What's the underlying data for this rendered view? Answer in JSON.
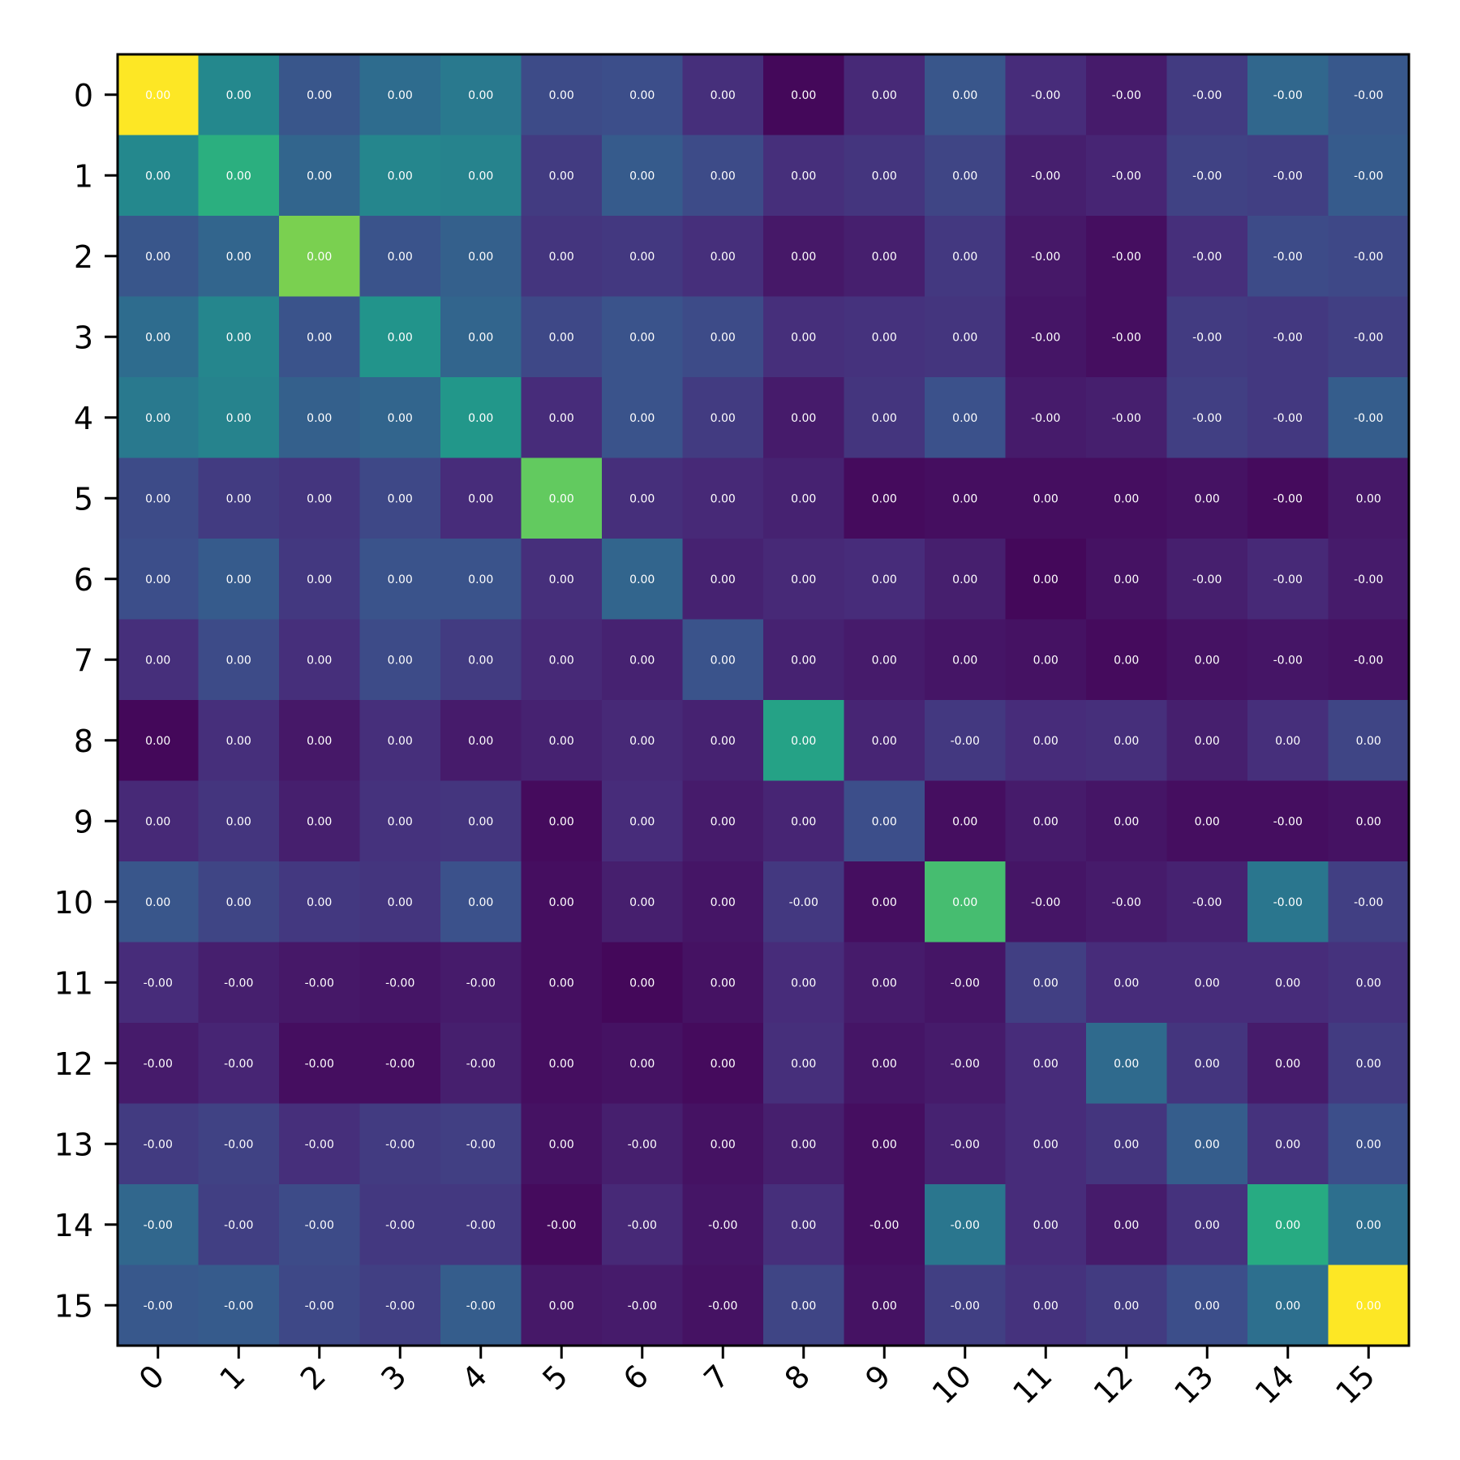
{
  "chart_data": {
    "type": "heatmap",
    "title": "",
    "xlabel": "",
    "ylabel": "",
    "colormap": "viridis",
    "x_categories": [
      "0",
      "1",
      "2",
      "3",
      "4",
      "5",
      "6",
      "7",
      "8",
      "9",
      "10",
      "11",
      "12",
      "13",
      "14",
      "15"
    ],
    "y_categories": [
      "0",
      "1",
      "2",
      "3",
      "4",
      "5",
      "6",
      "7",
      "8",
      "9",
      "10",
      "11",
      "12",
      "13",
      "14",
      "15"
    ],
    "intensity": [
      [
        1.0,
        0.47,
        0.27,
        0.36,
        0.41,
        0.23,
        0.24,
        0.14,
        0.02,
        0.12,
        0.27,
        0.13,
        0.08,
        0.18,
        0.34,
        0.28
      ],
      [
        0.47,
        0.64,
        0.33,
        0.46,
        0.45,
        0.18,
        0.29,
        0.23,
        0.14,
        0.16,
        0.21,
        0.09,
        0.11,
        0.2,
        0.19,
        0.29
      ],
      [
        0.27,
        0.33,
        0.8,
        0.26,
        0.31,
        0.16,
        0.17,
        0.14,
        0.07,
        0.09,
        0.17,
        0.07,
        0.04,
        0.14,
        0.23,
        0.22
      ],
      [
        0.36,
        0.46,
        0.26,
        0.52,
        0.33,
        0.22,
        0.26,
        0.23,
        0.14,
        0.15,
        0.16,
        0.06,
        0.04,
        0.18,
        0.17,
        0.19
      ],
      [
        0.41,
        0.45,
        0.31,
        0.33,
        0.53,
        0.13,
        0.26,
        0.18,
        0.08,
        0.16,
        0.25,
        0.08,
        0.09,
        0.19,
        0.17,
        0.3
      ],
      [
        0.23,
        0.18,
        0.16,
        0.22,
        0.13,
        0.76,
        0.14,
        0.12,
        0.1,
        0.03,
        0.04,
        0.04,
        0.04,
        0.05,
        0.03,
        0.07
      ],
      [
        0.24,
        0.29,
        0.17,
        0.26,
        0.26,
        0.14,
        0.33,
        0.1,
        0.12,
        0.13,
        0.09,
        0.02,
        0.05,
        0.09,
        0.12,
        0.08
      ],
      [
        0.14,
        0.23,
        0.14,
        0.23,
        0.18,
        0.12,
        0.1,
        0.26,
        0.1,
        0.08,
        0.06,
        0.05,
        0.03,
        0.05,
        0.06,
        0.05
      ],
      [
        0.02,
        0.14,
        0.07,
        0.14,
        0.08,
        0.1,
        0.12,
        0.1,
        0.58,
        0.11,
        0.17,
        0.13,
        0.14,
        0.09,
        0.14,
        0.21
      ],
      [
        0.12,
        0.16,
        0.09,
        0.15,
        0.16,
        0.03,
        0.13,
        0.08,
        0.11,
        0.24,
        0.04,
        0.08,
        0.06,
        0.04,
        0.04,
        0.05
      ],
      [
        0.27,
        0.21,
        0.17,
        0.16,
        0.25,
        0.04,
        0.09,
        0.06,
        0.17,
        0.04,
        0.7,
        0.06,
        0.08,
        0.1,
        0.4,
        0.19
      ],
      [
        0.13,
        0.09,
        0.07,
        0.06,
        0.08,
        0.04,
        0.02,
        0.05,
        0.13,
        0.08,
        0.06,
        0.19,
        0.13,
        0.13,
        0.13,
        0.15
      ],
      [
        0.08,
        0.11,
        0.04,
        0.04,
        0.09,
        0.04,
        0.05,
        0.03,
        0.14,
        0.06,
        0.08,
        0.13,
        0.35,
        0.16,
        0.08,
        0.18
      ],
      [
        0.18,
        0.2,
        0.14,
        0.18,
        0.19,
        0.05,
        0.09,
        0.05,
        0.09,
        0.04,
        0.1,
        0.13,
        0.16,
        0.3,
        0.15,
        0.24
      ],
      [
        0.34,
        0.19,
        0.23,
        0.17,
        0.17,
        0.03,
        0.12,
        0.06,
        0.14,
        0.04,
        0.4,
        0.13,
        0.08,
        0.15,
        0.62,
        0.37
      ],
      [
        0.28,
        0.29,
        0.22,
        0.19,
        0.3,
        0.07,
        0.08,
        0.05,
        0.21,
        0.05,
        0.19,
        0.15,
        0.18,
        0.24,
        0.37,
        1.0
      ]
    ],
    "value_labels": [
      [
        "0.00",
        "0.00",
        "0.00",
        "0.00",
        "0.00",
        "0.00",
        "0.00",
        "0.00",
        "0.00",
        "0.00",
        "0.00",
        "-0.00",
        "-0.00",
        "-0.00",
        "-0.00",
        "-0.00"
      ],
      [
        "0.00",
        "0.00",
        "0.00",
        "0.00",
        "0.00",
        "0.00",
        "0.00",
        "0.00",
        "0.00",
        "0.00",
        "0.00",
        "-0.00",
        "-0.00",
        "-0.00",
        "-0.00",
        "-0.00"
      ],
      [
        "0.00",
        "0.00",
        "0.00",
        "0.00",
        "0.00",
        "0.00",
        "0.00",
        "0.00",
        "0.00",
        "0.00",
        "0.00",
        "-0.00",
        "-0.00",
        "-0.00",
        "-0.00",
        "-0.00"
      ],
      [
        "0.00",
        "0.00",
        "0.00",
        "0.00",
        "0.00",
        "0.00",
        "0.00",
        "0.00",
        "0.00",
        "0.00",
        "0.00",
        "-0.00",
        "-0.00",
        "-0.00",
        "-0.00",
        "-0.00"
      ],
      [
        "0.00",
        "0.00",
        "0.00",
        "0.00",
        "0.00",
        "0.00",
        "0.00",
        "0.00",
        "0.00",
        "0.00",
        "0.00",
        "-0.00",
        "-0.00",
        "-0.00",
        "-0.00",
        "-0.00"
      ],
      [
        "0.00",
        "0.00",
        "0.00",
        "0.00",
        "0.00",
        "0.00",
        "0.00",
        "0.00",
        "0.00",
        "0.00",
        "0.00",
        "0.00",
        "0.00",
        "0.00",
        "-0.00",
        "0.00"
      ],
      [
        "0.00",
        "0.00",
        "0.00",
        "0.00",
        "0.00",
        "0.00",
        "0.00",
        "0.00",
        "0.00",
        "0.00",
        "0.00",
        "0.00",
        "0.00",
        "-0.00",
        "-0.00",
        "-0.00"
      ],
      [
        "0.00",
        "0.00",
        "0.00",
        "0.00",
        "0.00",
        "0.00",
        "0.00",
        "0.00",
        "0.00",
        "0.00",
        "0.00",
        "0.00",
        "0.00",
        "0.00",
        "-0.00",
        "-0.00"
      ],
      [
        "0.00",
        "0.00",
        "0.00",
        "0.00",
        "0.00",
        "0.00",
        "0.00",
        "0.00",
        "0.00",
        "0.00",
        "-0.00",
        "0.00",
        "0.00",
        "0.00",
        "0.00",
        "0.00"
      ],
      [
        "0.00",
        "0.00",
        "0.00",
        "0.00",
        "0.00",
        "0.00",
        "0.00",
        "0.00",
        "0.00",
        "0.00",
        "0.00",
        "0.00",
        "0.00",
        "0.00",
        "-0.00",
        "0.00"
      ],
      [
        "0.00",
        "0.00",
        "0.00",
        "0.00",
        "0.00",
        "0.00",
        "0.00",
        "0.00",
        "-0.00",
        "0.00",
        "0.00",
        "-0.00",
        "-0.00",
        "-0.00",
        "-0.00",
        "-0.00"
      ],
      [
        "-0.00",
        "-0.00",
        "-0.00",
        "-0.00",
        "-0.00",
        "0.00",
        "0.00",
        "0.00",
        "0.00",
        "0.00",
        "-0.00",
        "0.00",
        "0.00",
        "0.00",
        "0.00",
        "0.00"
      ],
      [
        "-0.00",
        "-0.00",
        "-0.00",
        "-0.00",
        "-0.00",
        "0.00",
        "0.00",
        "0.00",
        "0.00",
        "0.00",
        "-0.00",
        "0.00",
        "0.00",
        "0.00",
        "0.00",
        "0.00"
      ],
      [
        "-0.00",
        "-0.00",
        "-0.00",
        "-0.00",
        "-0.00",
        "0.00",
        "-0.00",
        "0.00",
        "0.00",
        "0.00",
        "-0.00",
        "0.00",
        "0.00",
        "0.00",
        "0.00",
        "0.00"
      ],
      [
        "-0.00",
        "-0.00",
        "-0.00",
        "-0.00",
        "-0.00",
        "-0.00",
        "-0.00",
        "-0.00",
        "0.00",
        "-0.00",
        "-0.00",
        "0.00",
        "0.00",
        "0.00",
        "0.00",
        "0.00"
      ],
      [
        "-0.00",
        "-0.00",
        "-0.00",
        "-0.00",
        "-0.00",
        "0.00",
        "-0.00",
        "-0.00",
        "0.00",
        "0.00",
        "-0.00",
        "0.00",
        "0.00",
        "0.00",
        "0.00",
        "0.00"
      ]
    ],
    "grid": false,
    "legend": "none"
  }
}
